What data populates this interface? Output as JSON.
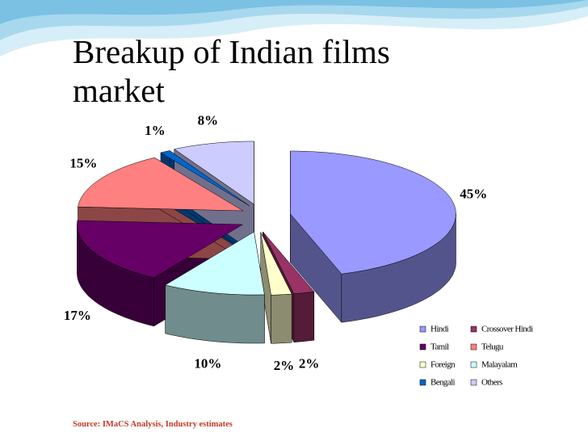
{
  "chart_data": {
    "type": "pie",
    "title": "Breakup of Indian films market",
    "categories": [
      "Hindi",
      "Crossover Hindi",
      "Foreign",
      "Malayalam",
      "Tamil",
      "Telugu",
      "Bengali",
      "Others"
    ],
    "values": [
      45,
      2,
      2,
      10,
      17,
      15,
      1,
      8
    ],
    "value_labels": [
      "45%",
      "2%",
      "2%",
      "10%",
      "17%",
      "15%",
      "1%",
      "8%"
    ],
    "colors": [
      "#9999ff",
      "#993366",
      "#ffffcc",
      "#ccffff",
      "#660066",
      "#ff8080",
      "#0066cc",
      "#ccccff"
    ],
    "legend": "bottom right",
    "source": "Source: IMaCS Analysis, Industry estimates"
  }
}
